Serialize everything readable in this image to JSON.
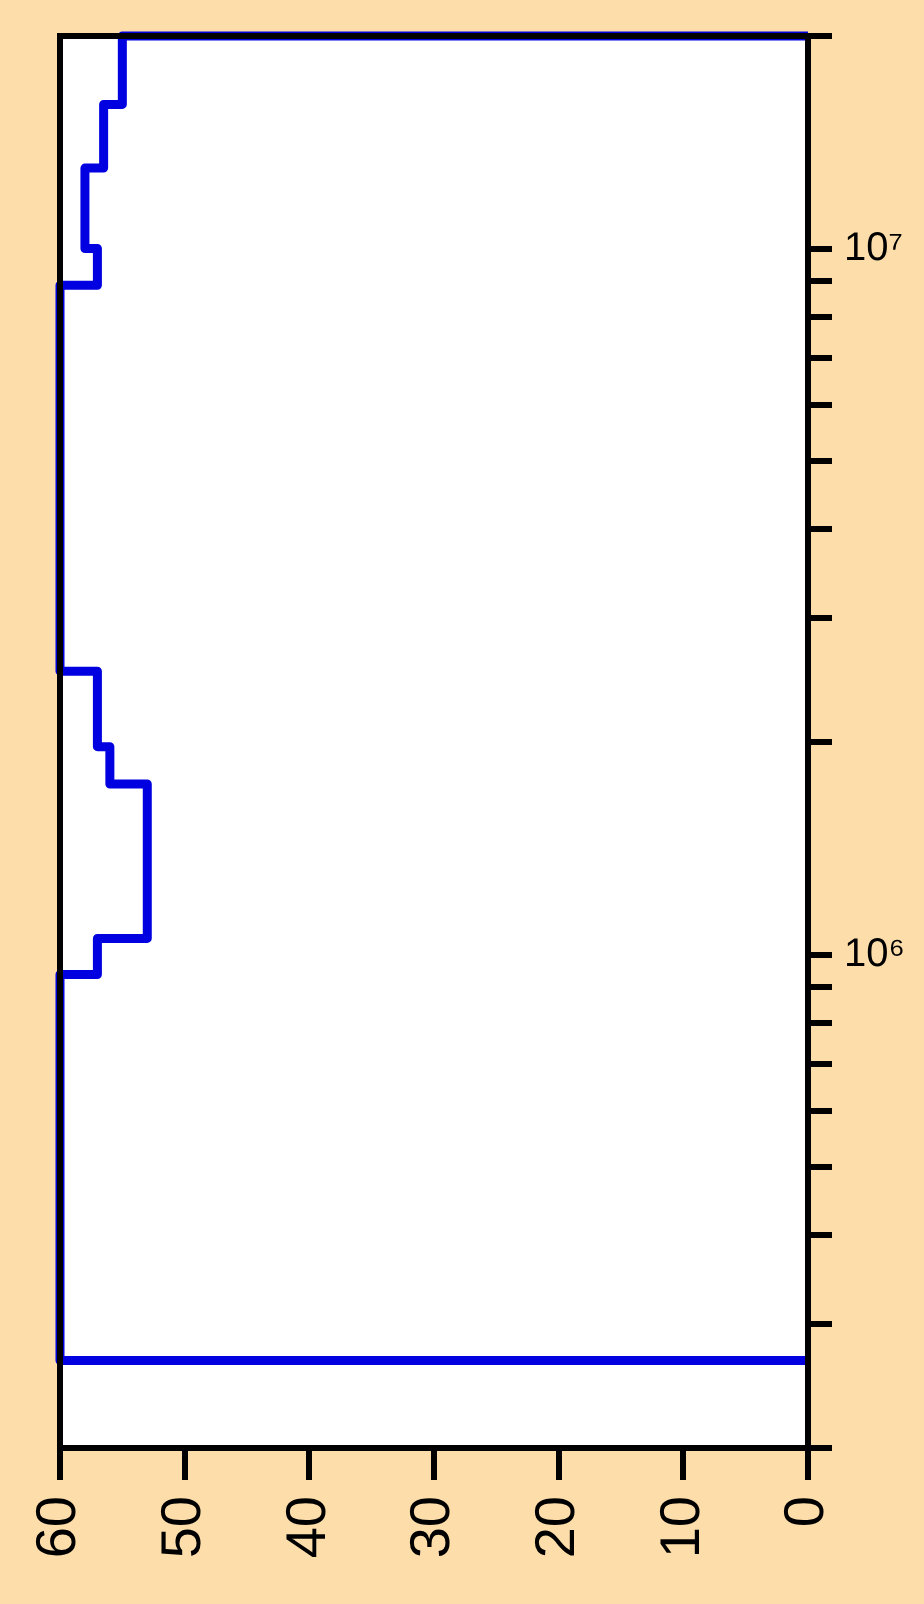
{
  "chart_data": {
    "type": "line",
    "log": "y",
    "line_style": "solid",
    "x": [
      0,
      60,
      60,
      57,
      57,
      53,
      53,
      56,
      56,
      57,
      57,
      60,
      60,
      57,
      57,
      58,
      58,
      56.5,
      56.5,
      55,
      55,
      0
    ],
    "series": [
      {
        "color": "#0000e0",
        "values": [
          266000,
          266000,
          937000,
          937000,
          1054000,
          1054000,
          1744000,
          1744000,
          1970000,
          1970000,
          2520000,
          2520000,
          8870000,
          8870000,
          10000000,
          10000000,
          13000000,
          13000000,
          16000000,
          16000000,
          20000000,
          20000000
        ]
      }
    ],
    "xlim": [
      60,
      0
    ],
    "xticks": [
      60,
      50,
      40,
      30,
      20,
      10,
      0
    ],
    "ylim": [
      200000,
      20000000
    ],
    "yticks": [
      {
        "value": 200000,
        "label": null
      },
      {
        "value": 300000,
        "label": null
      },
      {
        "value": 400000,
        "label": null
      },
      {
        "value": 500000,
        "label": null
      },
      {
        "value": 600000,
        "label": null
      },
      {
        "value": 700000,
        "label": null
      },
      {
        "value": 800000,
        "label": null
      },
      {
        "value": 900000,
        "label": null
      },
      {
        "value": 1000000,
        "label": "10⁶"
      },
      {
        "value": 2000000,
        "label": null
      },
      {
        "value": 3000000,
        "label": null
      },
      {
        "value": 4000000,
        "label": null
      },
      {
        "value": 5000000,
        "label": null
      },
      {
        "value": 6000000,
        "label": null
      },
      {
        "value": 7000000,
        "label": null
      },
      {
        "value": 8000000,
        "label": null
      },
      {
        "value": 9000000,
        "label": null
      },
      {
        "value": 10000000,
        "label": "10⁷"
      },
      {
        "value": 20000000,
        "label": null
      }
    ]
  }
}
